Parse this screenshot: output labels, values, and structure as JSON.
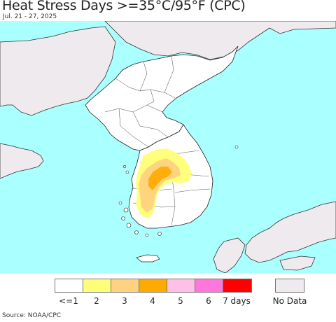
{
  "header": {
    "title": "Heat Stress Days >=35°C/95°F (CPC)",
    "date_range": "Jul. 21 - 27, 2025"
  },
  "map": {
    "ocean_color": "#aaffff",
    "land_color": "#ffffff",
    "foreign_land_color": "#eeeaee",
    "boundary_color": "#222222"
  },
  "legend": {
    "categories": [
      {
        "label": "<=1",
        "color": "#ffffff"
      },
      {
        "label": "2",
        "color": "#ffff77"
      },
      {
        "label": "3",
        "color": "#ffd280"
      },
      {
        "label": "4",
        "color": "#ffaa00"
      },
      {
        "label": "5",
        "color": "#ffc0e8"
      },
      {
        "label": "6",
        "color": "#ff77dd"
      },
      {
        "label": "7 days",
        "color": "#ff0000"
      }
    ],
    "no_data": {
      "label": "No Data",
      "color": "#eeeaee"
    }
  },
  "footer": {
    "source": "Source: NOAA/CPC"
  }
}
